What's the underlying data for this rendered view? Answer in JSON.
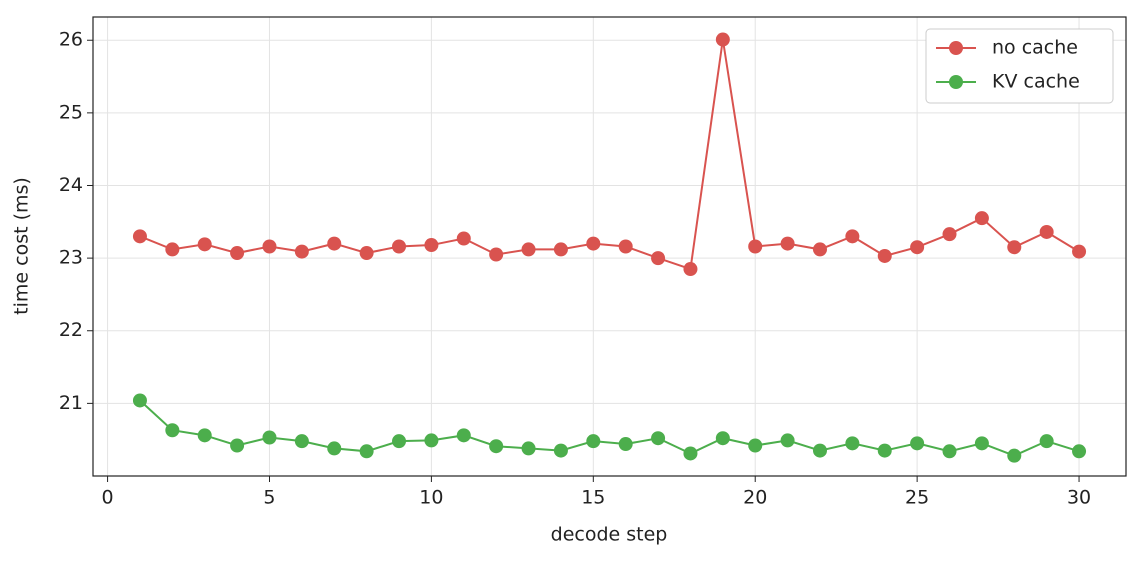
{
  "chart_data": {
    "type": "line",
    "x_label": "decode step",
    "y_label": "time cost (ms)",
    "x": [
      1,
      2,
      3,
      4,
      5,
      6,
      7,
      8,
      9,
      10,
      11,
      12,
      13,
      14,
      15,
      16,
      17,
      18,
      19,
      20,
      21,
      22,
      23,
      24,
      25,
      26,
      27,
      28,
      29,
      30
    ],
    "series": [
      {
        "name": "no cache",
        "color": "#d9534f",
        "values": [
          23.3,
          23.12,
          23.19,
          23.07,
          23.16,
          23.09,
          23.2,
          23.07,
          23.16,
          23.18,
          23.27,
          23.05,
          23.12,
          23.12,
          23.2,
          23.16,
          23.0,
          22.85,
          26.01,
          23.16,
          23.2,
          23.12,
          23.3,
          23.03,
          23.15,
          23.33,
          23.55,
          23.15,
          23.36,
          23.09
        ]
      },
      {
        "name": "KV cache",
        "color": "#4cae4c",
        "values": [
          21.04,
          20.63,
          20.56,
          20.42,
          20.53,
          20.48,
          20.38,
          20.34,
          20.48,
          20.49,
          20.56,
          20.41,
          20.38,
          20.35,
          20.48,
          20.44,
          20.52,
          20.31,
          20.52,
          20.42,
          20.49,
          20.35,
          20.45,
          20.35,
          20.45,
          20.34,
          20.45,
          20.28,
          20.48,
          20.34
        ]
      }
    ],
    "xlim": [
      -0.45,
      31.45
    ],
    "ylim": [
      20.0,
      26.32
    ],
    "xticks": [
      0,
      5,
      10,
      15,
      20,
      25,
      30
    ],
    "yticks": [
      21,
      22,
      23,
      24,
      25,
      26
    ],
    "grid": true,
    "legend": "upper right"
  }
}
